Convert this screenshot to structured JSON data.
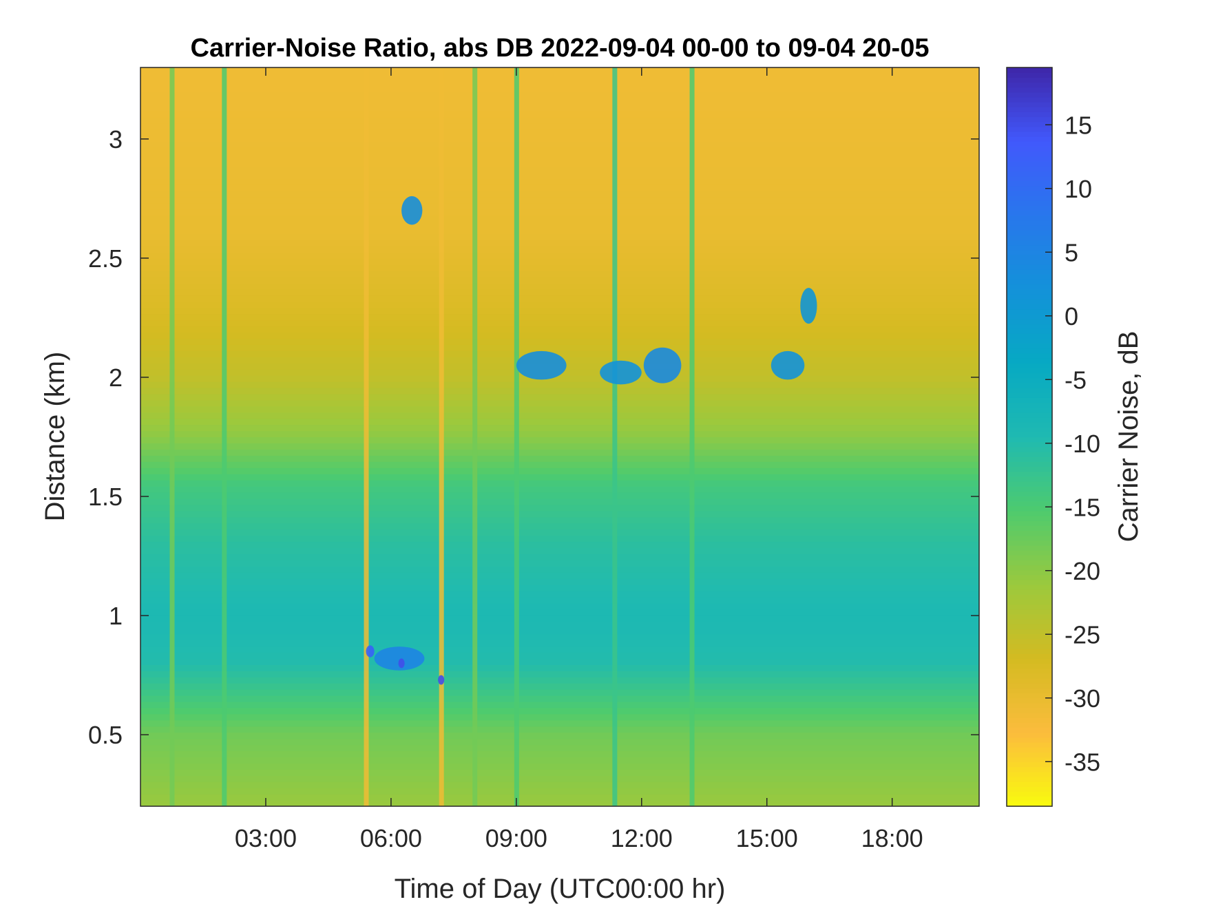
{
  "chart_data": {
    "type": "heatmap",
    "title": "Carrier-Noise Ratio, abs DB 2022-09-04 00-00 to 09-04 20-05",
    "xlabel": "Time of Day (UTC00:00 hr)",
    "ylabel": "Distance (km)",
    "colorbar_label": "Carrier Noise, dB",
    "xlim": [
      0,
      20.083
    ],
    "ylim": [
      0.2,
      3.3
    ],
    "clim": [
      -38.5,
      19.5
    ],
    "x_ticks": [
      {
        "value": 3,
        "label": "03:00"
      },
      {
        "value": 6,
        "label": "06:00"
      },
      {
        "value": 9,
        "label": "09:00"
      },
      {
        "value": 12,
        "label": "12:00"
      },
      {
        "value": 15,
        "label": "15:00"
      },
      {
        "value": 18,
        "label": "18:00"
      }
    ],
    "y_ticks": [
      {
        "value": 0.5,
        "label": "0.5"
      },
      {
        "value": 1,
        "label": "1"
      },
      {
        "value": 1.5,
        "label": "1.5"
      },
      {
        "value": 2,
        "label": "2"
      },
      {
        "value": 2.5,
        "label": "2.5"
      },
      {
        "value": 3,
        "label": "3"
      }
    ],
    "colorbar_ticks": [
      {
        "value": 15,
        "label": "15"
      },
      {
        "value": 10,
        "label": "10"
      },
      {
        "value": 5,
        "label": "5"
      },
      {
        "value": 0,
        "label": "0"
      },
      {
        "value": -5,
        "label": "-5"
      },
      {
        "value": -10,
        "label": "-10"
      },
      {
        "value": -15,
        "label": "-15"
      },
      {
        "value": -20,
        "label": "-20"
      },
      {
        "value": -25,
        "label": "-25"
      },
      {
        "value": -30,
        "label": "-30"
      },
      {
        "value": -35,
        "label": "-35"
      }
    ],
    "colormap": [
      "#f9fb0e",
      "#fbbc3d",
      "#d4bb21",
      "#9bc93d",
      "#4ecb6e",
      "#1fbab1",
      "#07a9c3",
      "#1392d9",
      "#2877ec",
      "#4159fc",
      "#3e26a8"
    ],
    "background_profile": [
      {
        "distance": 0.2,
        "value": -21
      },
      {
        "distance": 0.5,
        "value": -18
      },
      {
        "distance": 0.8,
        "value": -10
      },
      {
        "distance": 1.0,
        "value": -9
      },
      {
        "distance": 1.3,
        "value": -11
      },
      {
        "distance": 1.55,
        "value": -14
      },
      {
        "distance": 1.75,
        "value": -20
      },
      {
        "distance": 2.0,
        "value": -25
      },
      {
        "distance": 2.3,
        "value": -28
      },
      {
        "distance": 2.6,
        "value": -30
      },
      {
        "distance": 3.3,
        "value": -31
      }
    ],
    "features": [
      {
        "time": 9.6,
        "distance": 2.05,
        "value": 3,
        "dt": 1.2,
        "dd": 0.12
      },
      {
        "time": 11.5,
        "distance": 2.02,
        "value": 2,
        "dt": 1.0,
        "dd": 0.1
      },
      {
        "time": 12.5,
        "distance": 2.05,
        "value": 4,
        "dt": 0.9,
        "dd": 0.15
      },
      {
        "time": 15.5,
        "distance": 2.05,
        "value": 2,
        "dt": 0.8,
        "dd": 0.12
      },
      {
        "time": 16.0,
        "distance": 2.3,
        "value": 1,
        "dt": 0.4,
        "dd": 0.15
      },
      {
        "time": 6.5,
        "distance": 2.7,
        "value": 3,
        "dt": 0.5,
        "dd": 0.12
      },
      {
        "time": 6.2,
        "distance": 0.82,
        "value": 5,
        "dt": 1.2,
        "dd": 0.1
      },
      {
        "time": 5.5,
        "distance": 0.85,
        "value": 12,
        "dt": 0.2,
        "dd": 0.05
      },
      {
        "time": 6.25,
        "distance": 0.8,
        "value": 15,
        "dt": 0.15,
        "dd": 0.04
      },
      {
        "time": 7.2,
        "distance": 0.73,
        "value": 15,
        "dt": 0.15,
        "dd": 0.04
      }
    ],
    "vertical_streaks": [
      {
        "time": 0.75,
        "value": -18
      },
      {
        "time": 2.0,
        "value": -15
      },
      {
        "time": 9.0,
        "value": -15
      },
      {
        "time": 11.35,
        "value": -13
      },
      {
        "time": 13.2,
        "value": -15
      },
      {
        "time": 5.4,
        "value": -31
      },
      {
        "time": 7.2,
        "value": -31
      },
      {
        "time": 8.0,
        "value": -18
      }
    ],
    "grid": false
  }
}
